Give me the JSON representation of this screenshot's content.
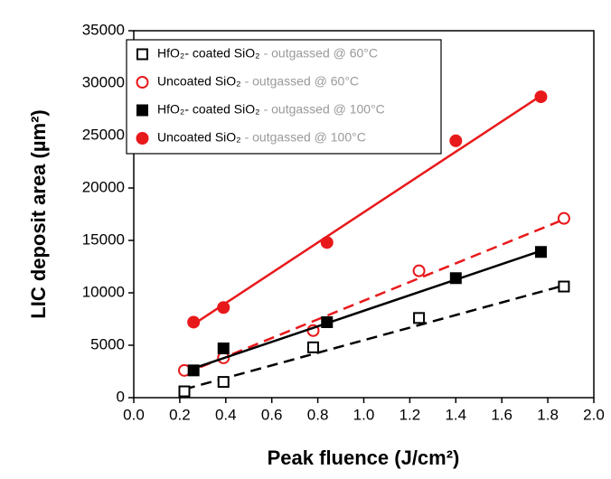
{
  "chart_data": {
    "type": "scatter",
    "x_label": "Peak fluence (J/cm²)",
    "y_label": "LIC deposit area (µm²)",
    "xlim": [
      0,
      2
    ],
    "xticks": [
      {
        "value": 0,
        "label": "0.0"
      },
      0.2,
      0.4,
      0.6,
      0.8,
      {
        "value": 1,
        "label": "1.0"
      },
      1.2,
      1.4,
      1.6,
      1.8,
      {
        "value": 2,
        "label": "2.0"
      }
    ],
    "ylim": [
      0,
      35000
    ],
    "yticks": [
      0,
      5000,
      10000,
      15000,
      20000,
      25000,
      30000,
      35000
    ],
    "legend": "top-left",
    "series": [
      {
        "name": "HfO₂- coated SiO₂",
        "condition": "- outgassed @ 60°C",
        "color": "#000000",
        "marker": "square",
        "filled": false,
        "dashed": true,
        "x": [
          0.22,
          0.39,
          0.78,
          1.24,
          1.87
        ],
        "values": [
          600,
          1500,
          4800,
          7600,
          10600
        ],
        "fit_x": [
          0.22,
          1.87
        ],
        "fit_y": [
          800,
          10700
        ]
      },
      {
        "name": "Uncoated SiO₂",
        "condition": "- outgassed @ 60°C",
        "color": "#e8191b",
        "marker": "circle",
        "filled": false,
        "dashed": true,
        "x": [
          0.22,
          0.39,
          0.78,
          1.24,
          1.87
        ],
        "values": [
          2600,
          3800,
          6400,
          12100,
          17100
        ],
        "fit_x": [
          0.22,
          1.87
        ],
        "fit_y": [
          2300,
          17000
        ]
      },
      {
        "name": "HfO₂- coated SiO₂",
        "condition": "- outgassed @ 100°C",
        "color": "#000000",
        "marker": "square",
        "filled": true,
        "dashed": false,
        "x": [
          0.26,
          0.39,
          0.84,
          1.4,
          1.77
        ],
        "values": [
          2600,
          4700,
          7200,
          11400,
          13900
        ],
        "fit_x": [
          0.26,
          1.77
        ],
        "fit_y": [
          2800,
          14000
        ]
      },
      {
        "name": "Uncoated SiO₂",
        "condition": "- outgassed @ 100°C",
        "color": "#e8191b",
        "marker": "circle",
        "filled": true,
        "dashed": false,
        "x": [
          0.26,
          0.39,
          0.84,
          1.4,
          1.77
        ],
        "values": [
          7200,
          8600,
          14800,
          24500,
          28700
        ],
        "fit_x": [
          0.26,
          1.77
        ],
        "fit_y": [
          7000,
          28800
        ]
      }
    ]
  }
}
